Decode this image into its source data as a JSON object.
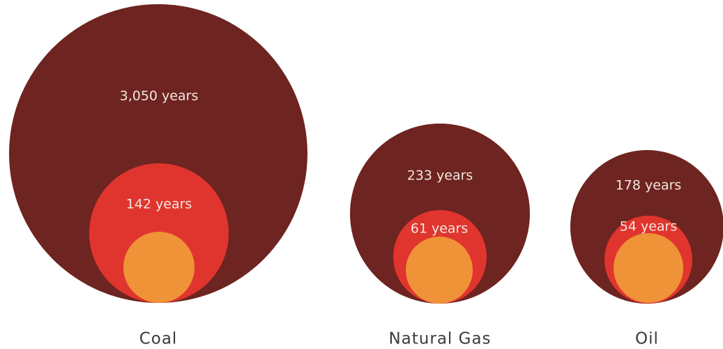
{
  "chart_data": {
    "type": "nested-circles",
    "categories": [
      "Coal",
      "Natural Gas",
      "Oil"
    ],
    "series": [
      {
        "color": "#6e2420",
        "values": [
          3050,
          233,
          178
        ],
        "value_labels": [
          "3,050 years",
          "233 years",
          "178 years"
        ]
      },
      {
        "color": "#e0352e",
        "values": [
          142,
          61,
          54
        ],
        "value_labels": [
          "142 years",
          "61 years",
          "54 years"
        ]
      }
    ],
    "inner_color": "#f09238"
  }
}
